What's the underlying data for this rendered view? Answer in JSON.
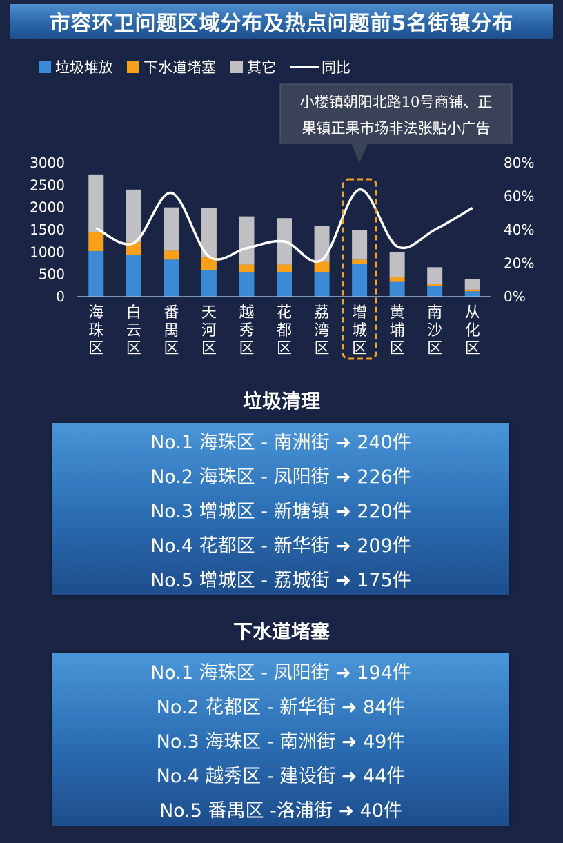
{
  "title": "市容环卫问题区域分布及热点问题前5名街镇分布",
  "chart_data": {
    "type": "bar",
    "stacked": true,
    "legend": [
      {
        "name": "垃圾堆放",
        "color": "#3a8ad6",
        "kind": "bar"
      },
      {
        "name": "下水道堵塞",
        "color": "#f7a01c",
        "kind": "bar"
      },
      {
        "name": "其它",
        "color": "#c0c0c4",
        "kind": "bar"
      },
      {
        "name": "同比",
        "color": "#ffffff",
        "kind": "line"
      }
    ],
    "legend_position": "top-left",
    "categories": [
      "海珠区",
      "白云区",
      "番禺区",
      "天河区",
      "越秀区",
      "花都区",
      "荔湾区",
      "增城区",
      "黄埔区",
      "南沙区",
      "从化区"
    ],
    "series": [
      {
        "name": "垃圾堆放",
        "values": [
          1020,
          940,
          830,
          600,
          540,
          550,
          540,
          740,
          330,
          240,
          120
        ]
      },
      {
        "name": "下水道堵塞",
        "values": [
          420,
          280,
          200,
          280,
          180,
          170,
          240,
          90,
          110,
          50,
          40
        ]
      },
      {
        "name": "其它",
        "values": [
          1300,
          1180,
          970,
          1100,
          1080,
          1040,
          800,
          670,
          550,
          370,
          230
        ]
      }
    ],
    "line": {
      "name": "同比",
      "values": [
        0.41,
        0.32,
        0.62,
        0.24,
        0.29,
        0.33,
        0.22,
        0.64,
        0.3,
        0.4,
        0.53
      ]
    },
    "ylim_left": [
      0,
      3000
    ],
    "yticks_left": [
      "0",
      "500",
      "1000",
      "1500",
      "2000",
      "2500",
      "3000"
    ],
    "ylim_right": [
      0,
      0.8
    ],
    "yticks_right": [
      "0%",
      "20%",
      "40%",
      "60%",
      "80%"
    ],
    "highlight_category": "增城区",
    "annotation": {
      "lines": [
        "小楼镇朝阳北路10号商铺、正",
        "果镇正果市场非法张贴小广告"
      ]
    }
  },
  "ranking_garbage": {
    "title": "垃圾清理",
    "rows": [
      "No.1 海珠区 - 南洲街 ➜ 240件",
      "No.2 海珠区 - 凤阳街 ➜ 226件",
      "No.3 增城区 - 新塘镇 ➜ 220件",
      "No.4 花都区 - 新华街 ➜ 209件",
      "No.5 增城区 - 荔城街 ➜ 175件"
    ]
  },
  "ranking_sewer": {
    "title": "下水道堵塞",
    "rows": [
      "No.1 海珠区 - 凤阳街 ➜ 194件",
      "No.2 花都区 - 新华街 ➜ 84件",
      "No.3 海珠区 - 南洲街 ➜ 49件",
      "No.4 越秀区 - 建设街 ➜ 44件",
      "No.5 番禺区 -洛浦街 ➜ 40件"
    ]
  }
}
